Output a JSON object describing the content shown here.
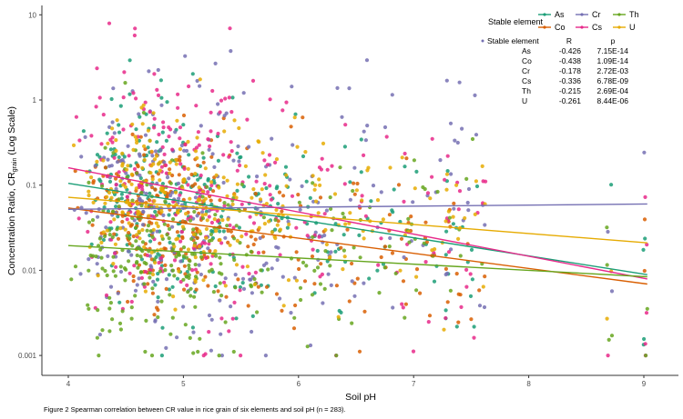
{
  "caption": "Figure 2 Spearman correlation between CR value in rice grain of six elements and soil pH (n = 283).",
  "chart_data": {
    "type": "scatter",
    "title": "",
    "xlabel": "Soil pH",
    "ylabel": "Concentration Ratio, CR",
    "ylabel_subscript": "grain",
    "ylabel_suffix": "(Log Scale)",
    "x_ticks": [
      4,
      5,
      6,
      7,
      8,
      9
    ],
    "y_ticks": [
      0.001,
      0.01,
      0.1,
      1,
      10
    ],
    "y_tick_labels": [
      "0.001",
      "0.01",
      "0.1",
      "1",
      "10"
    ],
    "xlim": [
      3.77,
      9.3
    ],
    "ylim": [
      0.0006,
      12
    ],
    "y_scale": "log",
    "grid": false,
    "legend": {
      "title": "Stable element",
      "placement": "top-right",
      "entries": [
        "As",
        "Co",
        "Cr",
        "Cs",
        "Th",
        "U"
      ]
    },
    "stats_table": {
      "headers": [
        "Stable element",
        "R",
        "p"
      ],
      "rows": [
        {
          "element": "As",
          "R": "-0.426",
          "p": "7.15E-14"
        },
        {
          "element": "Co",
          "R": "-0.438",
          "p": "1.09E-14"
        },
        {
          "element": "Cr",
          "R": "-0.178",
          "p": "2.72E-03"
        },
        {
          "element": "Cs",
          "R": "-0.336",
          "p": "6.78E-09"
        },
        {
          "element": "Th",
          "R": "-0.215",
          "p": "2.69E-04"
        },
        {
          "element": "U",
          "R": "-0.261",
          "p": "8.44E-06"
        }
      ]
    },
    "series": [
      {
        "name": "As",
        "color": "#1B9E77",
        "trend": {
          "x": [
            4.0,
            9.03
          ],
          "y": [
            0.105,
            0.0089
          ]
        },
        "center": 0.035,
        "spread": 0.55
      },
      {
        "name": "Co",
        "color": "#D95F02",
        "trend": {
          "x": [
            4.0,
            9.03
          ],
          "y": [
            0.054,
            0.0069
          ]
        },
        "center": 0.025,
        "spread": 0.5
      },
      {
        "name": "Cr",
        "color": "#7570B3",
        "trend": {
          "x": [
            4.0,
            9.03
          ],
          "y": [
            0.052,
            0.06
          ]
        },
        "center": 0.045,
        "spread": 0.7
      },
      {
        "name": "Cs",
        "color": "#E7298A",
        "trend": {
          "x": [
            4.0,
            9.03
          ],
          "y": [
            0.16,
            0.0079
          ]
        },
        "center": 0.05,
        "spread": 0.75
      },
      {
        "name": "Th",
        "color": "#66A61E",
        "trend": {
          "x": [
            4.0,
            9.03
          ],
          "y": [
            0.0195,
            0.0084
          ]
        },
        "center": 0.012,
        "spread": 0.55
      },
      {
        "name": "U",
        "color": "#E6AB02",
        "trend": {
          "x": [
            4.0,
            9.03
          ],
          "y": [
            0.072,
            0.021
          ]
        },
        "center": 0.04,
        "spread": 0.5
      }
    ],
    "n": 283
  }
}
